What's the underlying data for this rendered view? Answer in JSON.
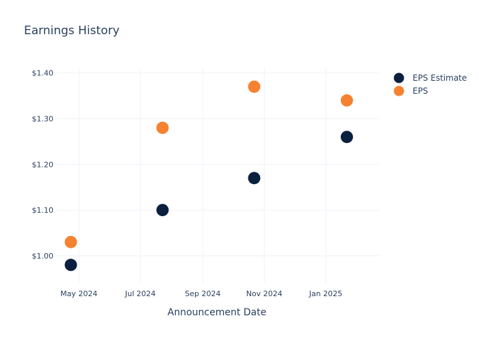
{
  "chart_data": {
    "type": "scatter",
    "title": "Earnings History",
    "xlabel": "Announcement Date",
    "ylabel": "",
    "x": [
      "2024-04-23",
      "2024-07-23",
      "2024-10-22",
      "2025-01-22"
    ],
    "series": [
      {
        "name": "EPS Estimate",
        "color": "#0b1f3f",
        "values": [
          0.98,
          1.1,
          1.17,
          1.26
        ]
      },
      {
        "name": "EPS",
        "color": "#f58231",
        "values": [
          1.03,
          1.28,
          1.37,
          1.34
        ]
      }
    ],
    "x_ticks": [
      {
        "date": "2024-05-01",
        "label": "May 2024"
      },
      {
        "date": "2024-07-01",
        "label": "Jul 2024"
      },
      {
        "date": "2024-09-01",
        "label": "Sep 2024"
      },
      {
        "date": "2024-11-01",
        "label": "Nov 2024"
      },
      {
        "date": "2025-01-01",
        "label": "Jan 2025"
      }
    ],
    "y_ticks": [
      {
        "value": 1.0,
        "label": "$1.00"
      },
      {
        "value": 1.1,
        "label": "$1.10"
      },
      {
        "value": 1.2,
        "label": "$1.20"
      },
      {
        "value": 1.3,
        "label": "$1.30"
      },
      {
        "value": 1.4,
        "label": "$1.40"
      }
    ],
    "xlim": [
      "2024-04-07",
      "2025-02-23"
    ],
    "ylim": [
      0.94,
      1.41
    ],
    "grid": true,
    "legend": "top-right"
  }
}
